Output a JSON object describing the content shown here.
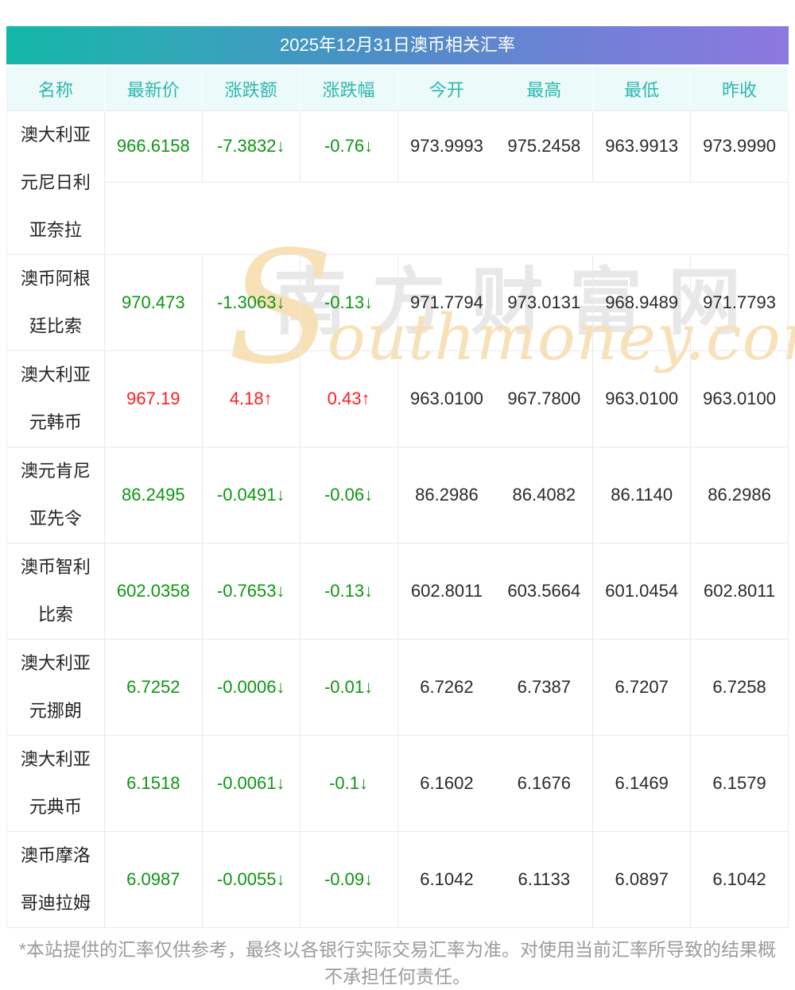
{
  "title": "2025年12月31日澳币相关汇率",
  "table": {
    "columns": [
      "名称",
      "最新价",
      "涨跌额",
      "涨跌幅",
      "今开",
      "最高",
      "最低",
      "昨收"
    ],
    "rows": [
      {
        "name": "澳大利亚元尼日利亚奈拉",
        "latest": "966.6158",
        "change": "-7.3832↓",
        "pct": "-0.76↓",
        "open": "973.9993",
        "high": "975.2458",
        "low": "963.9913",
        "prev": "973.9990",
        "trend": "down"
      },
      {
        "name": "澳币阿根廷比索",
        "latest": "970.473",
        "change": "-1.3063↓",
        "pct": "-0.13↓",
        "open": "971.7794",
        "high": "973.0131",
        "low": "968.9489",
        "prev": "971.7793",
        "trend": "down"
      },
      {
        "name": "澳大利亚元韩币",
        "latest": "967.19",
        "change": "4.18↑",
        "pct": "0.43↑",
        "open": "963.0100",
        "high": "967.7800",
        "low": "963.0100",
        "prev": "963.0100",
        "trend": "up"
      },
      {
        "name": "澳元肯尼亚先令",
        "latest": "86.2495",
        "change": "-0.0491↓",
        "pct": "-0.06↓",
        "open": "86.2986",
        "high": "86.4082",
        "low": "86.1140",
        "prev": "86.2986",
        "trend": "down"
      },
      {
        "name": "澳币智利比索",
        "latest": "602.0358",
        "change": "-0.7653↓",
        "pct": "-0.13↓",
        "open": "602.8011",
        "high": "603.5664",
        "low": "601.0454",
        "prev": "602.8011",
        "trend": "down"
      },
      {
        "name": "澳大利亚元挪朗",
        "latest": "6.7252",
        "change": "-0.0006↓",
        "pct": "-0.01↓",
        "open": "6.7262",
        "high": "6.7387",
        "low": "6.7207",
        "prev": "6.7258",
        "trend": "down"
      },
      {
        "name": "澳大利亚元典币",
        "latest": "6.1518",
        "change": "-0.0061↓",
        "pct": "-0.1↓",
        "open": "6.1602",
        "high": "6.1676",
        "low": "6.1469",
        "prev": "6.1579",
        "trend": "down"
      },
      {
        "name": "澳币摩洛哥迪拉姆",
        "latest": "6.0987",
        "change": "-0.0055↓",
        "pct": "-0.09↓",
        "open": "6.1042",
        "high": "6.1133",
        "low": "6.0897",
        "prev": "6.1042",
        "trend": "down"
      }
    ]
  },
  "watermark": {
    "cn": "南方财富网",
    "en_initial": "S",
    "en_rest": "outhmoney.com"
  },
  "footer": "*本站提供的汇率仅供参考，最终以各银行实际交易汇率为准。对使用当前汇率所导致的结果概不承担任何责任。",
  "colors": {
    "up": "#fb1e1e",
    "down": "#0e9612",
    "gradient_left": "#12b7a7",
    "gradient_mid": "#4f8cc9",
    "gradient_right": "#8d78e0",
    "header_text": "#2bb8af",
    "header_bg": "#ecfaf9",
    "watermark_tan": "#f8e0b4"
  }
}
